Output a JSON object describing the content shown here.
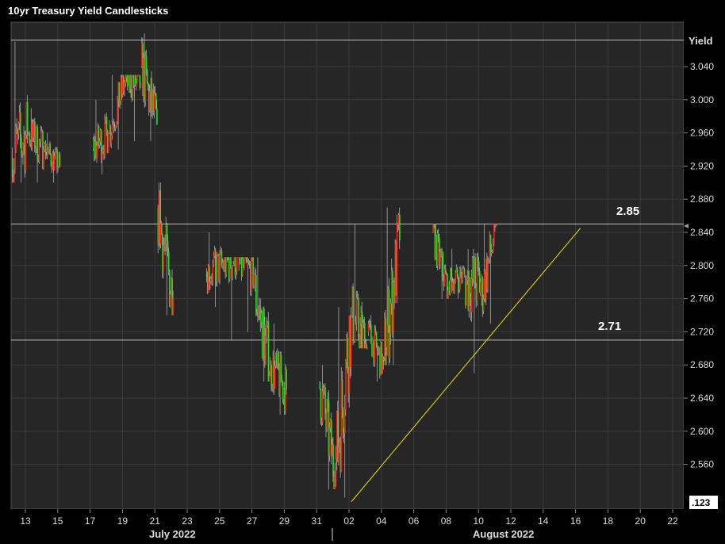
{
  "chart_data": {
    "type": "candlestick",
    "title": "10yr Treasury Yield Candlesticks",
    "ylabel": "Yield",
    "ylim": [
      2.5,
      3.08
    ],
    "y_ticks": [
      "3.040",
      "3.000",
      "2.960",
      "2.920",
      "2.880",
      "2.840",
      "2.800",
      "2.760",
      "2.720",
      "2.680",
      "2.640",
      "2.600",
      "2.560"
    ],
    "x_ticks": [
      "13",
      "15",
      "17",
      "19",
      "21",
      "23",
      "25",
      "27",
      "29",
      "31",
      "02",
      "04",
      "06",
      "08",
      "10",
      "12",
      "14",
      "16",
      "18",
      "20",
      "22"
    ],
    "month_labels": [
      "July 2022",
      "August 2022"
    ],
    "last_value_badge": ".123",
    "horizontal_lines": [
      {
        "label": "",
        "value": 3.072
      },
      {
        "label": "2.85",
        "value": 2.85
      },
      {
        "label": "2.71",
        "value": 2.71
      }
    ],
    "trendline": {
      "from": {
        "date": "Aug 2",
        "value": 2.515
      },
      "to": {
        "date": "Aug 16",
        "value": 2.845
      }
    },
    "colors": {
      "up": "#ff1a1a",
      "down": "#22dd22",
      "background": "#262626",
      "grid": "#3a3a3a",
      "level_line": "#bbbbbb",
      "trendline": "#e6e600",
      "wick": "#aaaaaa"
    },
    "daily_ranges": [
      {
        "date": "Jul 13",
        "open": 2.93,
        "high": 3.07,
        "low": 2.9,
        "close": 2.96
      },
      {
        "date": "Jul 14",
        "open": 2.96,
        "high": 2.99,
        "low": 2.9,
        "close": 2.94
      },
      {
        "date": "Jul 15",
        "open": 2.94,
        "high": 2.96,
        "low": 2.9,
        "close": 2.92
      },
      {
        "date": "Jul 18",
        "open": 2.94,
        "high": 3.0,
        "low": 2.91,
        "close": 2.96
      },
      {
        "date": "Jul 19",
        "open": 2.96,
        "high": 3.03,
        "low": 2.94,
        "close": 3.02
      },
      {
        "date": "Jul 20",
        "open": 3.02,
        "high": 3.03,
        "low": 2.95,
        "close": 3.02
      },
      {
        "date": "Jul 21",
        "open": 3.04,
        "high": 3.08,
        "low": 2.95,
        "close": 2.97
      },
      {
        "date": "Jul 22",
        "open": 2.87,
        "high": 2.9,
        "low": 2.74,
        "close": 2.76
      },
      {
        "date": "Jul 25",
        "open": 2.79,
        "high": 2.84,
        "low": 2.75,
        "close": 2.8
      },
      {
        "date": "Jul 26",
        "open": 2.8,
        "high": 2.81,
        "low": 2.71,
        "close": 2.81
      },
      {
        "date": "Jul 27",
        "open": 2.8,
        "high": 2.81,
        "low": 2.72,
        "close": 2.79
      },
      {
        "date": "Jul 28",
        "open": 2.77,
        "high": 2.81,
        "low": 2.66,
        "close": 2.68
      },
      {
        "date": "Jul 29",
        "open": 2.68,
        "high": 2.73,
        "low": 2.62,
        "close": 2.65
      },
      {
        "date": "Aug 1",
        "open": 2.66,
        "high": 2.68,
        "low": 2.53,
        "close": 2.55
      },
      {
        "date": "Aug 2",
        "open": 2.55,
        "high": 2.75,
        "low": 2.52,
        "close": 2.74
      },
      {
        "date": "Aug 3",
        "open": 2.74,
        "high": 2.85,
        "low": 2.7,
        "close": 2.7
      },
      {
        "date": "Aug 4",
        "open": 2.72,
        "high": 2.74,
        "low": 2.66,
        "close": 2.68
      },
      {
        "date": "Aug 5",
        "open": 2.69,
        "high": 2.87,
        "low": 2.68,
        "close": 2.83
      },
      {
        "date": "Aug 8",
        "open": 2.84,
        "high": 2.85,
        "low": 2.76,
        "close": 2.77
      },
      {
        "date": "Aug 9",
        "open": 2.78,
        "high": 2.82,
        "low": 2.76,
        "close": 2.79
      },
      {
        "date": "Aug 10",
        "open": 2.78,
        "high": 2.82,
        "low": 2.67,
        "close": 2.78
      },
      {
        "date": "Aug 11",
        "open": 2.76,
        "high": 2.85,
        "low": 2.73,
        "close": 2.85
      }
    ]
  }
}
